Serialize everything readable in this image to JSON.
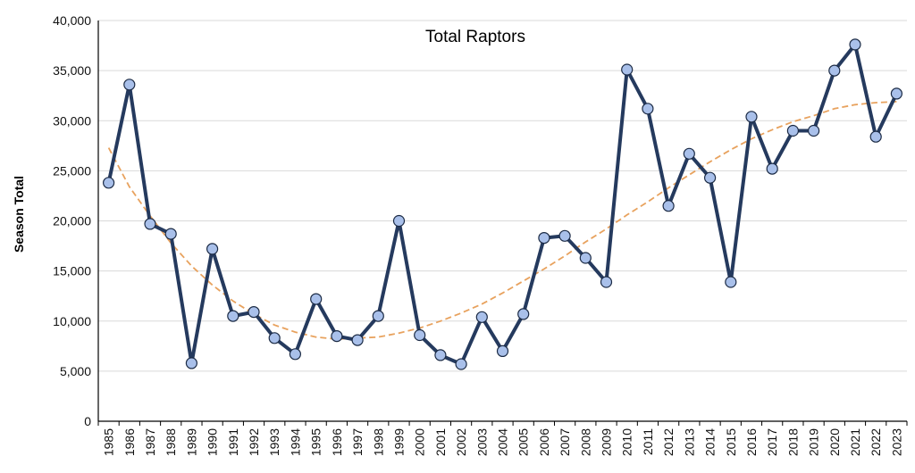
{
  "chart_data": {
    "type": "line",
    "title": "Total Raptors",
    "xlabel": "",
    "ylabel": "Season Total",
    "ylim": [
      0,
      40000
    ],
    "yticks": [
      "0",
      "5,000",
      "10,000",
      "15,000",
      "20,000",
      "25,000",
      "30,000",
      "35,000",
      "40,000"
    ],
    "ytick_values": [
      0,
      5000,
      10000,
      15000,
      20000,
      25000,
      30000,
      35000,
      40000
    ],
    "grid": "horizontal",
    "legend": "none",
    "categories": [
      "1985",
      "1986",
      "1987",
      "1988",
      "1989",
      "1990",
      "1991",
      "1992",
      "1993",
      "1994",
      "1995",
      "1996",
      "1997",
      "1998",
      "1999",
      "2000",
      "2001",
      "2002",
      "2003",
      "2004",
      "2005",
      "2006",
      "2007",
      "2008",
      "2009",
      "2010",
      "2011",
      "2012",
      "2013",
      "2014",
      "2015",
      "2016",
      "2017",
      "2018",
      "2019",
      "2020",
      "2021",
      "2022",
      "2023"
    ],
    "series": [
      {
        "values": [
          23800,
          33600,
          19700,
          18700,
          5800,
          17200,
          10500,
          10900,
          8300,
          6700,
          12200,
          8500,
          8100,
          10500,
          20000,
          8600,
          6600,
          5700,
          10400,
          7000,
          10700,
          18300,
          18500,
          16300,
          13900,
          35100,
          31200,
          21500,
          26700,
          24300,
          13900,
          30400,
          25200,
          29000,
          29000,
          35000,
          37600,
          28400,
          32700
        ],
        "line_color": "#253a5e",
        "marker_color": "#a9c0ea"
      },
      {
        "type": "trendline",
        "values": [
          27300,
          23400,
          20500,
          17800,
          15500,
          13600,
          12000,
          10700,
          9600,
          8900,
          8400,
          8200,
          8300,
          8400,
          8800,
          9300,
          10000,
          10800,
          11700,
          12800,
          14000,
          15200,
          16500,
          17900,
          19200,
          20600,
          21900,
          23300,
          24600,
          25900,
          27100,
          28200,
          29100,
          29900,
          30500,
          31200,
          31600,
          31800,
          31900
        ],
        "line_color": "#e8a25e",
        "dashed": true
      }
    ]
  }
}
